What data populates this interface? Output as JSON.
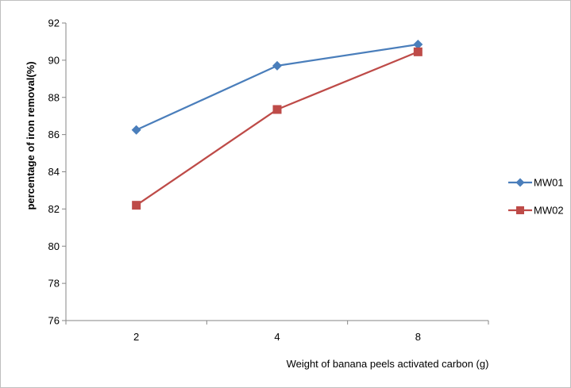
{
  "chart_data": {
    "type": "line",
    "categories": [
      "2",
      "4",
      "8"
    ],
    "series": [
      {
        "name": "MW01",
        "values": [
          86.25,
          89.7,
          90.85
        ],
        "color": "#4a7ebb",
        "marker": "diamond"
      },
      {
        "name": "MW02",
        "values": [
          82.2,
          87.35,
          90.45
        ],
        "color": "#be4b48",
        "marker": "square"
      }
    ],
    "title": "",
    "xlabel": "Weight of banana peels activated carbon (g)",
    "ylabel": "percentage of iron removal(%)",
    "ylim": [
      76,
      92
    ],
    "yticks": [
      "76",
      "78",
      "80",
      "82",
      "84",
      "86",
      "88",
      "90",
      "92"
    ],
    "grid": false,
    "legend_position": "right"
  }
}
